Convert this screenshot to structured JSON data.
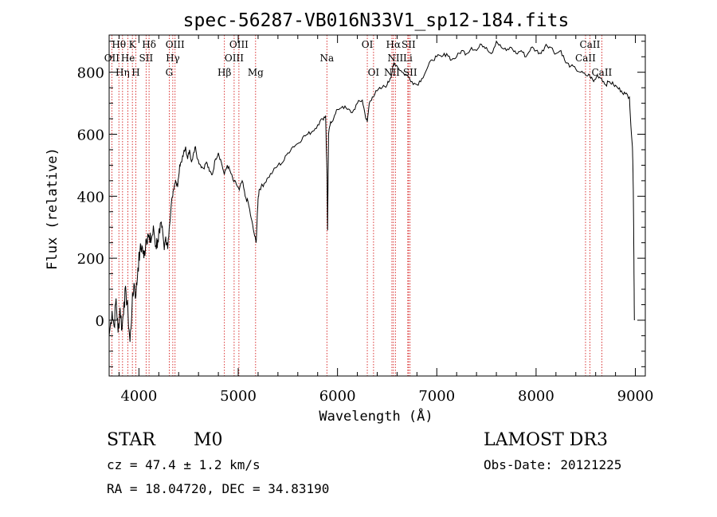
{
  "chart_data": {
    "type": "line",
    "title": "spec-56287-VB016N33V1_sp12-184.fits",
    "xlabel": "Wavelength (Å)",
    "ylabel": "Flux (relative)",
    "xlim": [
      3700,
      9100
    ],
    "ylim": [
      -180,
      920
    ],
    "x_ticks": [
      4000,
      5000,
      6000,
      7000,
      8000,
      9000
    ],
    "y_ticks": [
      0,
      200,
      400,
      600,
      800
    ],
    "grid": false,
    "series": [
      {
        "x": [
          3700,
          3730,
          3750,
          3770,
          3790,
          3810,
          3830,
          3850,
          3870,
          3890,
          3910,
          3930,
          3950,
          3970,
          3990,
          4010,
          4030,
          4050,
          4070,
          4090,
          4110,
          4130,
          4150,
          4170,
          4190,
          4210,
          4230,
          4250,
          4270,
          4290,
          4310,
          4330,
          4350,
          4370,
          4390,
          4410,
          4430,
          4450,
          4470,
          4490,
          4510,
          4530,
          4550,
          4570,
          4590,
          4620,
          4650,
          4680,
          4710,
          4740,
          4770,
          4800,
          4830,
          4860,
          4890,
          4920,
          4950,
          4980,
          5010,
          5040,
          5070,
          5100,
          5130,
          5160,
          5180,
          5190,
          5200,
          5210,
          5230,
          5260,
          5300,
          5350,
          5400,
          5450,
          5500,
          5550,
          5600,
          5650,
          5700,
          5750,
          5800,
          5850,
          5880,
          5895,
          5900,
          5910,
          5930,
          5960,
          6000,
          6050,
          6100,
          6150,
          6200,
          6250,
          6280,
          6300,
          6320,
          6350,
          6400,
          6450,
          6500,
          6530,
          6550,
          6560,
          6570,
          6600,
          6650,
          6700,
          6750,
          6800,
          6850,
          6900,
          6950,
          7000,
          7050,
          7100,
          7150,
          7200,
          7250,
          7300,
          7350,
          7400,
          7450,
          7500,
          7550,
          7600,
          7650,
          7700,
          7750,
          7800,
          7850,
          7900,
          7950,
          8000,
          8050,
          8100,
          8150,
          8200,
          8250,
          8300,
          8350,
          8400,
          8450,
          8500,
          8540,
          8580,
          8620,
          8660,
          8700,
          8740,
          8780,
          8820,
          8860,
          8900,
          8940,
          8960,
          8970,
          8975,
          8980,
          8985,
          8990
        ],
        "values": [
          -50,
          30,
          -20,
          70,
          -40,
          40,
          -30,
          60,
          90,
          20,
          -70,
          40,
          120,
          80,
          170,
          220,
          240,
          200,
          260,
          280,
          250,
          270,
          290,
          240,
          260,
          280,
          300,
          250,
          270,
          230,
          310,
          390,
          420,
          450,
          430,
          500,
          510,
          540,
          560,
          520,
          550,
          510,
          540,
          560,
          520,
          500,
          490,
          510,
          480,
          470,
          520,
          540,
          510,
          470,
          500,
          480,
          450,
          440,
          420,
          450,
          400,
          380,
          330,
          280,
          250,
          320,
          390,
          420,
          430,
          440,
          460,
          480,
          500,
          510,
          540,
          560,
          570,
          590,
          600,
          610,
          630,
          650,
          660,
          460,
          290,
          600,
          640,
          650,
          680,
          690,
          680,
          670,
          700,
          710,
          660,
          640,
          700,
          720,
          740,
          750,
          760,
          780,
          800,
          820,
          830,
          820,
          800,
          790,
          770,
          760,
          780,
          810,
          840,
          850,
          850,
          860,
          840,
          850,
          870,
          860,
          880,
          870,
          890,
          880,
          860,
          900,
          880,
          870,
          880,
          860,
          870,
          850,
          880,
          870,
          860,
          890,
          880,
          860,
          870,
          830,
          820,
          810,
          800,
          790,
          790,
          770,
          790,
          780,
          760,
          770,
          760,
          750,
          740,
          730,
          720,
          600,
          560,
          500,
          400,
          200,
          0
        ]
      }
    ],
    "line_markers": [
      {
        "label": "Hθ",
        "x": 3798,
        "row": 1
      },
      {
        "label": "OII",
        "x": 3727,
        "row": 2
      },
      {
        "label": "Hη",
        "x": 3835,
        "row": 3
      },
      {
        "label": "He",
        "x": 3889,
        "row": 2
      },
      {
        "label": "K",
        "x": 3934,
        "row": 1
      },
      {
        "label": "SII",
        "x": 4072,
        "row": 2
      },
      {
        "label": "H",
        "x": 3969,
        "row": 3
      },
      {
        "label": "Hδ",
        "x": 4102,
        "row": 1
      },
      {
        "label": "OIII",
        "x": 4364,
        "row": 1
      },
      {
        "label": "Hγ",
        "x": 4341,
        "row": 2
      },
      {
        "label": "G",
        "x": 4305,
        "row": 3
      },
      {
        "label": "Hβ",
        "x": 4861,
        "row": 3
      },
      {
        "label": "OIII",
        "x": 5007,
        "row": 1
      },
      {
        "label": "OIII",
        "x": 4959,
        "row": 2
      },
      {
        "label": "Mg",
        "x": 5175,
        "row": 3
      },
      {
        "label": "Na",
        "x": 5893,
        "row": 2
      },
      {
        "label": "OI",
        "x": 6300,
        "row": 1
      },
      {
        "label": "OI",
        "x": 6363,
        "row": 3
      },
      {
        "label": "Hα",
        "x": 6563,
        "row": 1
      },
      {
        "label": "SII",
        "x": 6716,
        "row": 1
      },
      {
        "label": "NII",
        "x": 6583,
        "row": 2
      },
      {
        "label": "Li",
        "x": 6708,
        "row": 2
      },
      {
        "label": "NII",
        "x": 6548,
        "row": 3
      },
      {
        "label": "SII",
        "x": 6731,
        "row": 3
      },
      {
        "label": "CaII",
        "x": 8542,
        "row": 1
      },
      {
        "label": "CaII",
        "x": 8498,
        "row": 2
      },
      {
        "label": "CaII",
        "x": 8662,
        "row": 3
      }
    ]
  },
  "info": {
    "class_label": "STAR",
    "subclass_label": "M0",
    "survey_label": "LAMOST DR3",
    "redshift_text": "cz = 47.4 ± 1.2 km/s",
    "obs_date_text": "Obs-Date: 20121225",
    "coords_text": "RA =  18.04720, DEC =  34.83190"
  }
}
